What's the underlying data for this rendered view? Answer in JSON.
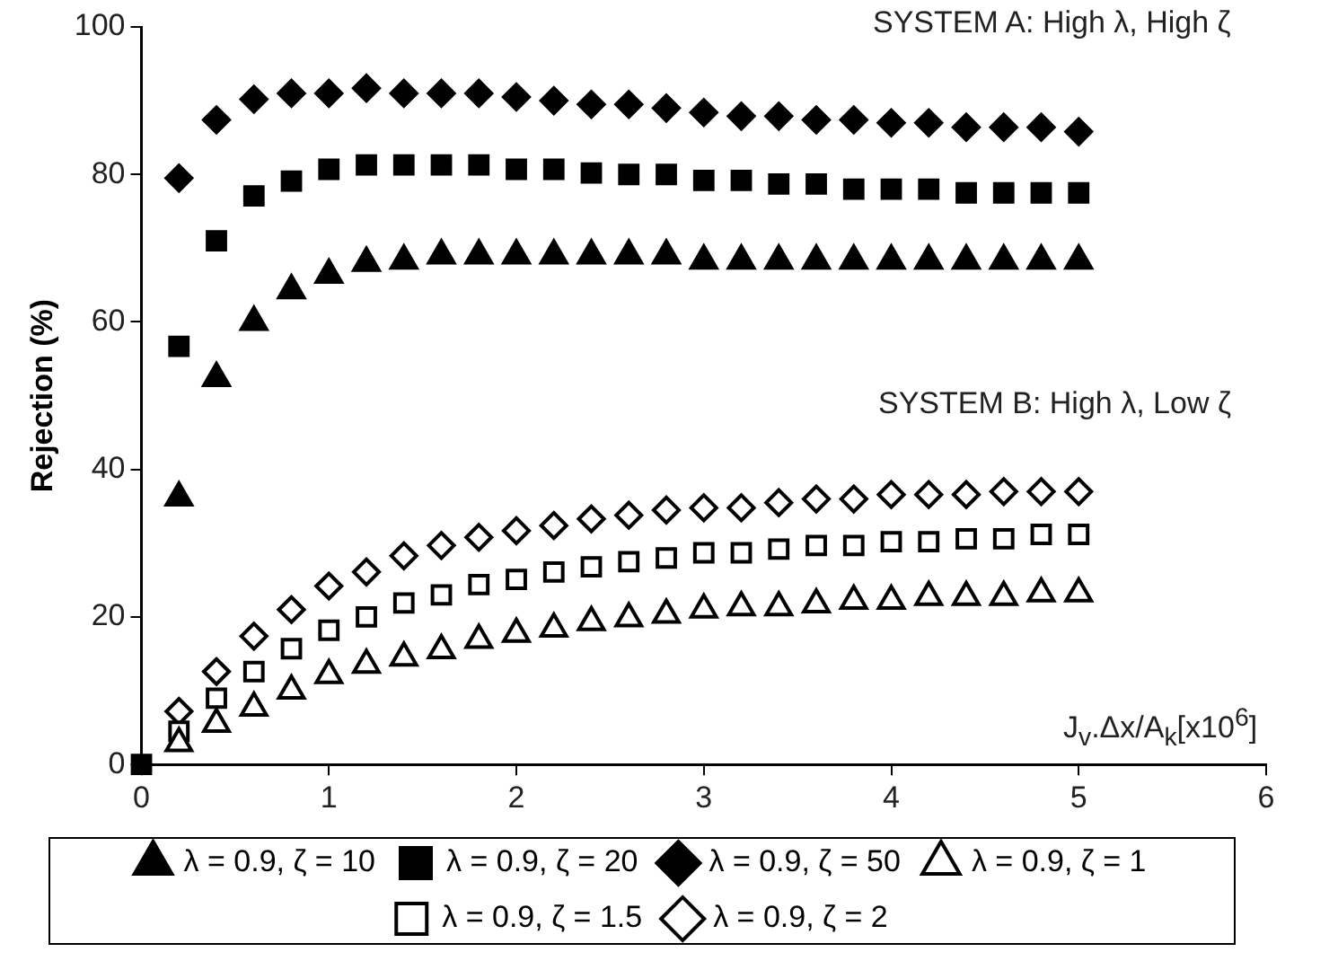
{
  "chart_data": {
    "type": "scatter",
    "ylabel": "Rejection (%)",
    "xlabel": "J$_{v}$.Δx/A$_{k}$[x10$^{6}$]",
    "x": [
      0,
      0.2,
      0.4,
      0.6,
      0.8,
      1.0,
      1.2,
      1.4,
      1.6,
      1.8,
      2.0,
      2.2,
      2.4,
      2.6,
      2.8,
      3.0,
      3.2,
      3.4,
      3.6,
      3.8,
      4.0,
      4.2,
      4.4,
      4.6,
      4.8,
      5.0
    ],
    "xlim": [
      0,
      6
    ],
    "xticks": [
      0,
      1,
      2,
      3,
      4,
      5,
      6
    ],
    "ylim": [
      0,
      100
    ],
    "yticks": [
      0,
      20,
      40,
      60,
      80,
      100
    ],
    "grid": false,
    "legend": "bottom",
    "annotations": [
      "SYSTEM A: High λ, High ζ",
      "SYSTEM B: High λ, Low ζ"
    ],
    "series": [
      {
        "name": "λ = 0.9, ζ = 10",
        "color": "#000000",
        "marker": "triangle",
        "values": [
          null,
          36.2,
          52.4,
          60,
          64.3,
          66.4,
          68,
          68.3,
          69,
          69,
          69,
          69,
          69,
          69,
          69,
          68.3,
          68.3,
          68.3,
          68.3,
          68.3,
          68.3,
          68.3,
          68.3,
          68.3,
          68.3,
          68.3
        ]
      },
      {
        "name": "λ = 0.9, ζ = 20",
        "color": "#000000",
        "marker": "square",
        "values": [
          0,
          56.7,
          71,
          77.1,
          79.1,
          80.7,
          81.3,
          81.3,
          81.3,
          81.3,
          80.7,
          80.7,
          80.2,
          80,
          80,
          79.2,
          79.2,
          78.7,
          78.7,
          78,
          78,
          78,
          77.5,
          77.5,
          77.5,
          77.5
        ]
      },
      {
        "name": "λ = 0.9, ζ = 50",
        "color": "#000000",
        "marker": "diamond",
        "values": [
          null,
          79.5,
          87.4,
          90.2,
          91,
          91,
          91.7,
          91,
          91,
          91,
          90.5,
          90,
          89.5,
          89.5,
          89,
          88.4,
          87.9,
          87.9,
          87.4,
          87.4,
          87,
          87,
          86.4,
          86.4,
          86.4,
          85.8
        ]
      },
      {
        "name": "λ = 0.9, ζ = 1",
        "color": "#ffffff",
        "marker": "triangle",
        "values": [
          null,
          2.9,
          5.5,
          7.7,
          10,
          12.1,
          13.5,
          14.5,
          15.5,
          16.9,
          17.7,
          18.4,
          19.3,
          19.8,
          20.3,
          21,
          21.3,
          21.3,
          21.7,
          22.2,
          22.2,
          22.7,
          22.7,
          22.7,
          23.2,
          23.2
        ]
      },
      {
        "name": "λ = 0.9, ζ = 1.5",
        "color": "#ffffff",
        "marker": "square",
        "values": [
          null,
          4.5,
          9,
          12.6,
          15.7,
          18.2,
          20,
          21.9,
          23,
          24.4,
          25.1,
          26.1,
          26.8,
          27.5,
          28,
          28.7,
          28.7,
          29.2,
          29.7,
          29.7,
          30.2,
          30.2,
          30.6,
          30.6,
          31.2,
          31.2
        ]
      },
      {
        "name": "λ = 0.9, ζ = 2",
        "color": "#ffffff",
        "marker": "diamond",
        "values": [
          null,
          7.2,
          12.6,
          17.4,
          21,
          24.2,
          26.1,
          28.3,
          29.7,
          30.8,
          31.7,
          32.4,
          33.3,
          33.8,
          34.5,
          34.8,
          34.8,
          35.5,
          36,
          36,
          36.6,
          36.6,
          36.6,
          37,
          37,
          37
        ]
      }
    ]
  }
}
